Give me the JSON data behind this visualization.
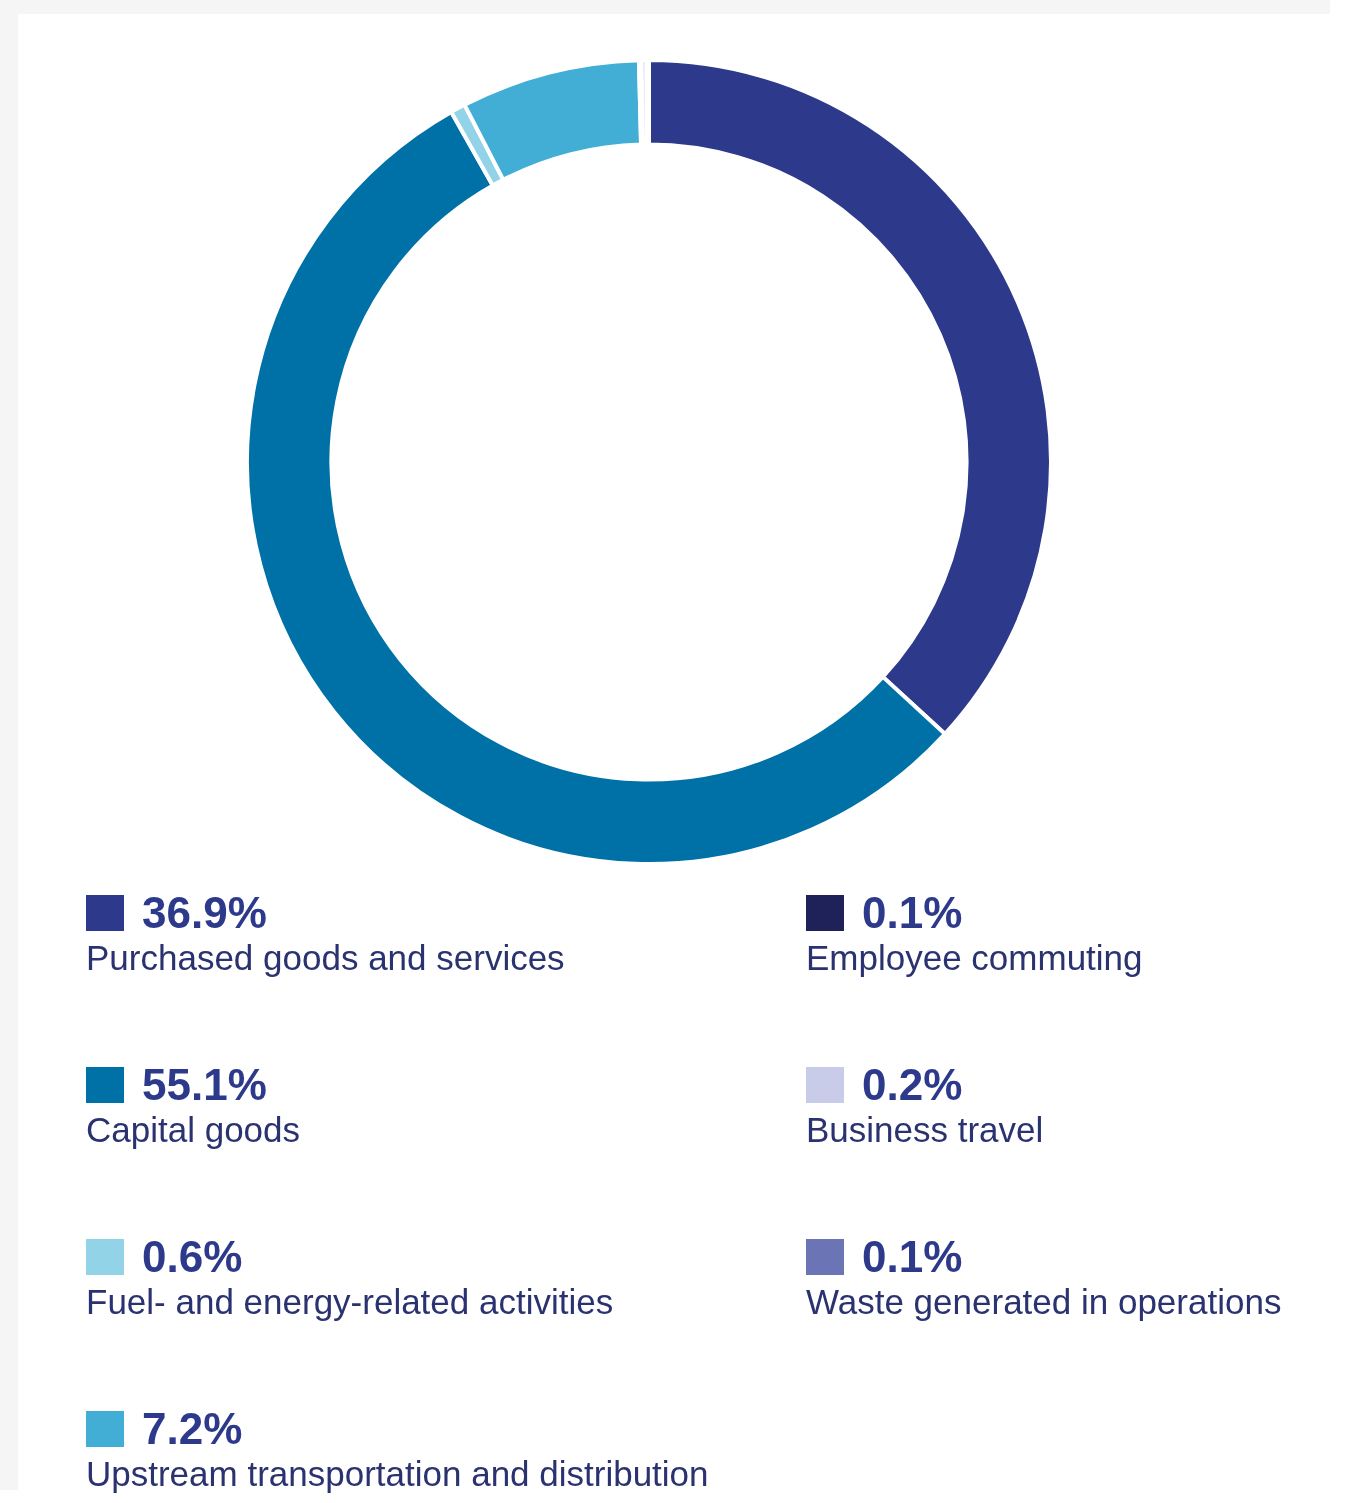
{
  "chart_data": {
    "type": "donut",
    "categories": [
      "Purchased goods and services",
      "Capital goods",
      "Fuel- and energy-related activities",
      "Upstream transportation and distribution",
      "Employee commuting",
      "Business travel",
      "Waste generated in operations"
    ],
    "values": [
      36.9,
      55.1,
      0.6,
      7.2,
      0.1,
      0.2,
      0.1
    ],
    "value_labels": [
      "36.9%",
      "55.1%",
      "0.6%",
      "7.2%",
      "0.1%",
      "0.2%",
      "0.1%"
    ],
    "colors": [
      "#2d3a8c",
      "#0071a7",
      "#92d3e8",
      "#42aed5",
      "#1f2258",
      "#c8cce8",
      "#6b75b5"
    ],
    "legend": "bottom"
  }
}
